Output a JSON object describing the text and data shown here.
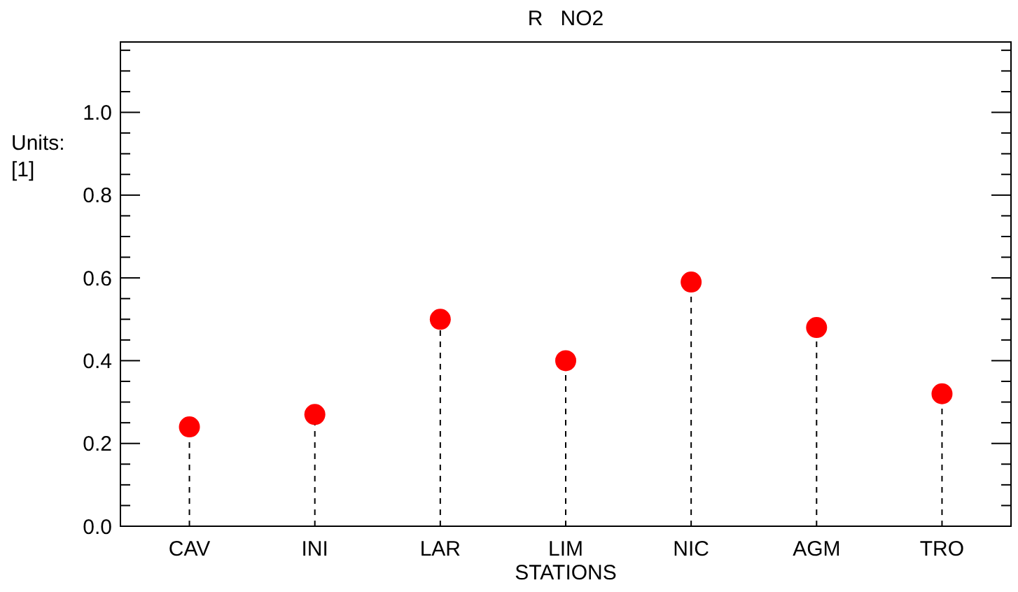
{
  "chart_data": {
    "type": "lollipop",
    "title": "R   NO2",
    "xlabel": "STATIONS",
    "ylabel": "Units:\n[1]",
    "categories": [
      "CAV",
      "INI",
      "LAR",
      "LIM",
      "NIC",
      "AGM",
      "TRO"
    ],
    "series": [
      {
        "color": "#ff0000",
        "values": [
          0.24,
          0.27,
          0.5,
          0.4,
          0.59,
          0.48,
          0.32
        ]
      }
    ],
    "ylim": [
      0,
      1.17
    ],
    "yticks": [
      "0.0",
      {
        "value": 0.05,
        "label": null
      },
      {
        "value": 0.1,
        "label": null
      },
      {
        "value": 0.15,
        "label": null
      },
      0.2,
      {
        "value": 0.25,
        "label": null
      },
      {
        "value": 0.3,
        "label": null
      },
      {
        "value": 0.35,
        "label": null
      },
      0.4,
      {
        "value": 0.45,
        "label": null
      },
      {
        "value": 0.5,
        "label": null
      },
      {
        "value": 0.55,
        "label": null
      },
      0.6,
      {
        "value": 0.65,
        "label": null
      },
      {
        "value": 0.7,
        "label": null
      },
      {
        "value": 0.75,
        "label": null
      },
      0.8,
      {
        "value": 0.85,
        "label": null
      },
      {
        "value": 0.9,
        "label": null
      },
      {
        "value": 0.95,
        "label": null
      },
      "1.0",
      {
        "value": 1.05,
        "label": null
      },
      {
        "value": 1.1,
        "label": null
      },
      {
        "value": 1.15,
        "label": null
      }
    ],
    "marker": "circle",
    "line_style": "dashed",
    "grid": false
  }
}
